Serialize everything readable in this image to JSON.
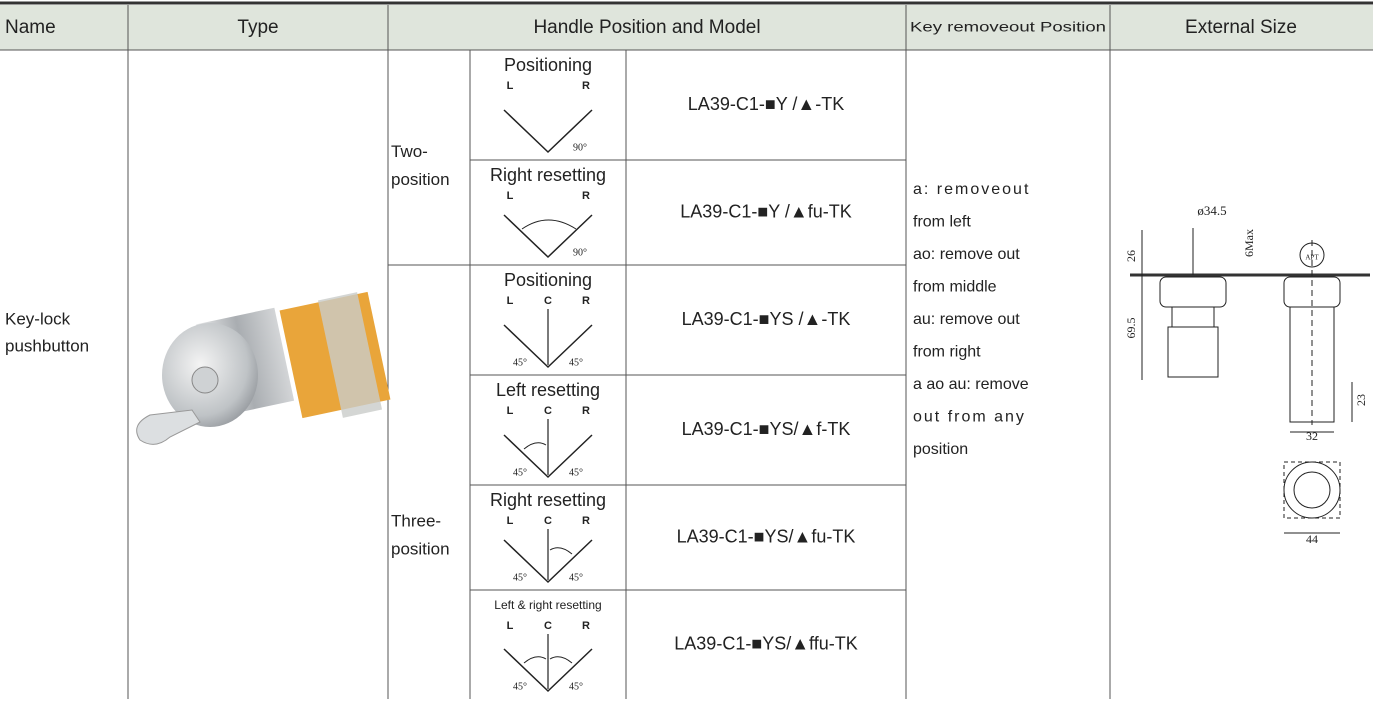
{
  "header": [
    "Name",
    "Type",
    "Handle Position and Model",
    "Key removeout Position",
    "External Size"
  ],
  "name": [
    "Key-lock",
    "pushbutton"
  ],
  "groups": [
    {
      "label": [
        "Two-",
        "position"
      ],
      "rows": [
        {
          "caption": "Positioning",
          "letters": [
            "L",
            "R"
          ],
          "angles": [
            "90°"
          ],
          "model": "LA39-C1-■Y /▲-TK"
        },
        {
          "caption": "Right resetting",
          "letters": [
            "L",
            "R"
          ],
          "angles": [
            "90°"
          ],
          "model": "LA39-C1-■Y /▲fu-TK"
        }
      ]
    },
    {
      "label": [
        "Three-",
        "position"
      ],
      "rows": [
        {
          "caption": "Positioning",
          "letters": [
            "L",
            "C",
            "R"
          ],
          "angles": [
            "45°",
            "45°"
          ],
          "model": "LA39-C1-■YS /▲-TK"
        },
        {
          "caption": "Left resetting",
          "letters": [
            "L",
            "C",
            "R"
          ],
          "angles": [
            "45°",
            "45°"
          ],
          "model": "LA39-C1-■YS/▲f-TK"
        },
        {
          "caption": "Right resetting",
          "letters": [
            "L",
            "C",
            "R"
          ],
          "angles": [
            "45°",
            "45°"
          ],
          "model": "LA39-C1-■YS/▲fu-TK"
        },
        {
          "caption": "Left & right resetting",
          "letters": [
            "L",
            "C",
            "R"
          ],
          "angles": [
            "45°",
            "45°"
          ],
          "model": "LA39-C1-■YS/▲ffu-TK"
        }
      ]
    }
  ],
  "key_removeout": [
    "a: removeout",
    "from left",
    "ao: remove out",
    "from middle",
    "au: remove out",
    "from right",
    "a ao au: remove",
    "out from any",
    "position"
  ],
  "external_size": {
    "diameter": "ø34.5",
    "max": "6Max",
    "height_top": "26",
    "height_body": "69.5",
    "height_bottom": "23",
    "width": "32",
    "width_bottom": "44",
    "key_mark": "APT"
  }
}
